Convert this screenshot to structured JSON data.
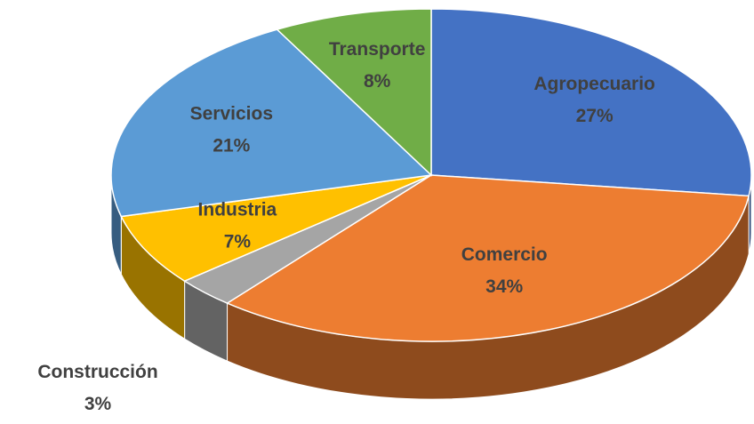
{
  "chart_data": {
    "type": "pie",
    "categories": [
      "Agropecuario",
      "Comercio",
      "Construcción",
      "Industria",
      "Servicios",
      "Transporte"
    ],
    "values": [
      27,
      34,
      3,
      7,
      21,
      8
    ],
    "value_labels": [
      "27%",
      "34%",
      "3%",
      "7%",
      "21%",
      "8%"
    ],
    "colors": [
      "#4472c4",
      "#ed7d31",
      "#a5a5a5",
      "#ffc000",
      "#5b9bd5",
      "#70ad47"
    ]
  }
}
